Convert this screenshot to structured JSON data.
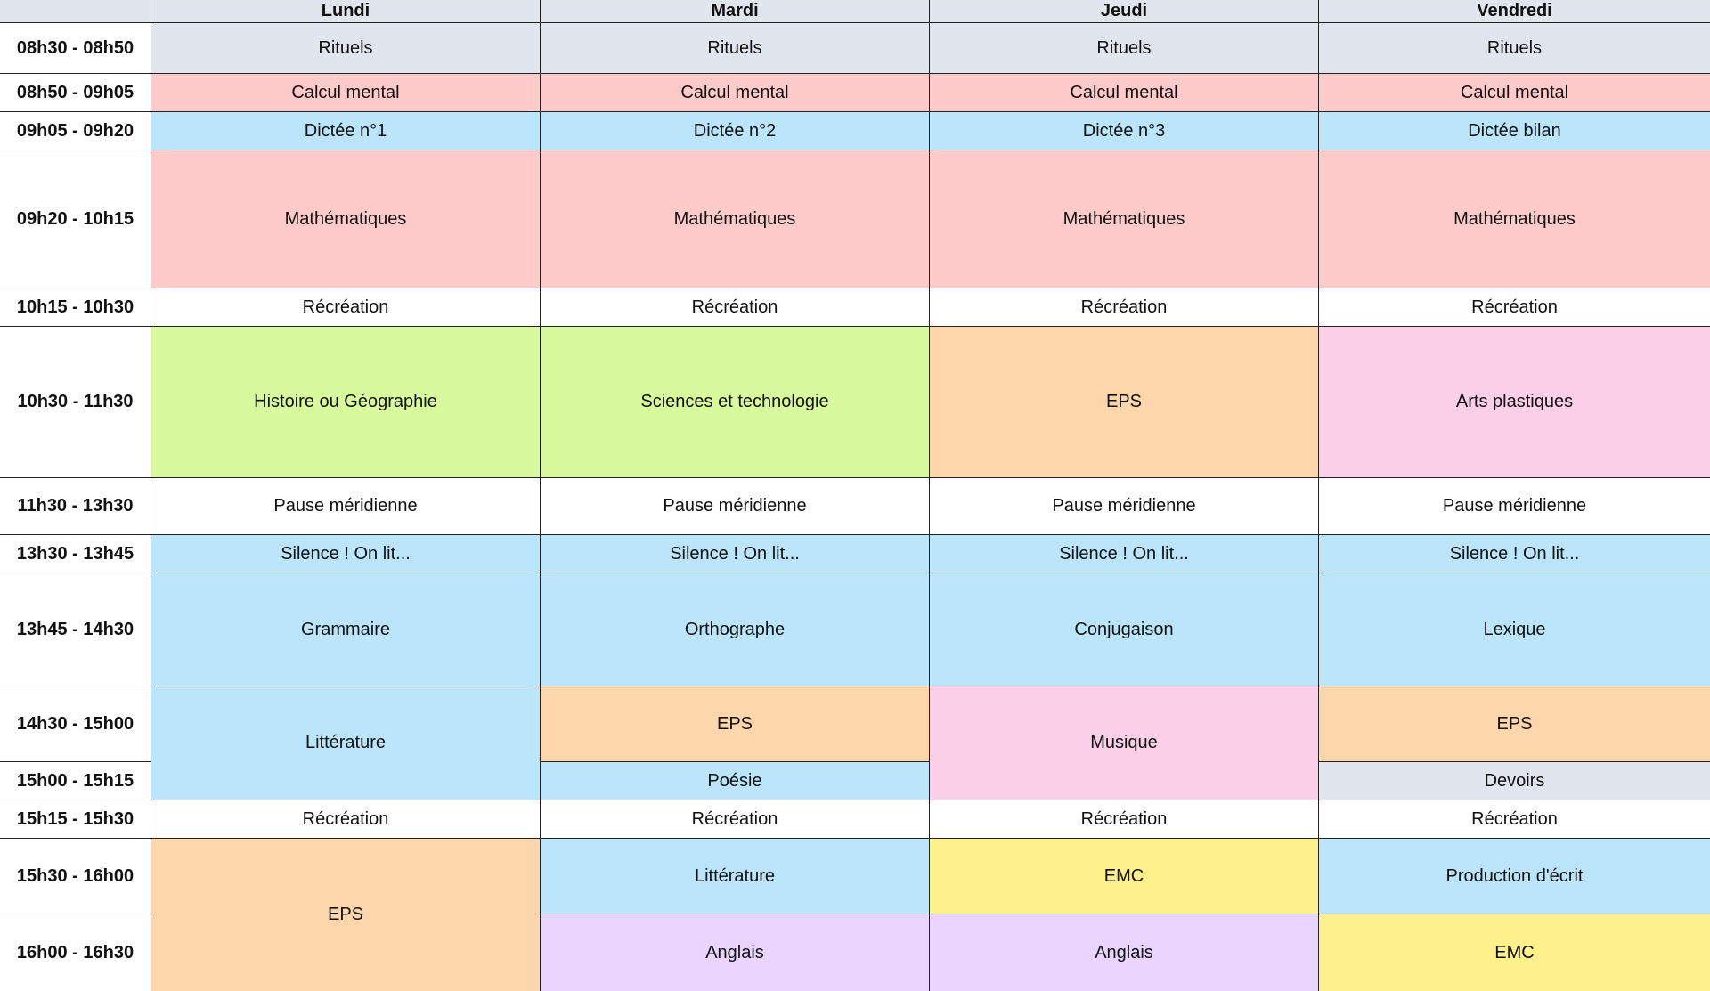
{
  "days": [
    "Lundi",
    "Mardi",
    "Jeudi",
    "Vendredi"
  ],
  "times": [
    "08h30 - 08h50",
    "08h50 - 09h05",
    "09h05 - 09h20",
    "09h20 - 10h15",
    "10h15 - 10h30",
    "10h30 - 11h30",
    "11h30 - 13h30",
    "13h30 - 13h45",
    "13h45 - 14h30",
    "14h30 - 15h00",
    "15h00 - 15h15",
    "15h15 - 15h30",
    "15h30 - 16h00",
    "16h00 - 16h30"
  ],
  "slots": {
    "rituels": "Rituels",
    "calcul": "Calcul mental",
    "dictee1": "Dictée n°1",
    "dictee2": "Dictée n°2",
    "dictee3": "Dictée n°3",
    "dictee_bilan": "Dictée bilan",
    "maths": "Mathématiques",
    "recreation": "Récréation",
    "histoire_geo": "Histoire ou Géographie",
    "sciences": "Sciences et technologie",
    "eps": "EPS",
    "arts": "Arts plastiques",
    "pause": "Pause méridienne",
    "silence": "Silence ! On lit...",
    "grammaire": "Grammaire",
    "orthographe": "Orthographe",
    "conjugaison": "Conjugaison",
    "lexique": "Lexique",
    "litterature": "Littérature",
    "musique": "Musique",
    "poesie": "Poésie",
    "devoirs": "Devoirs",
    "emc": "EMC",
    "production": "Production d'écrit",
    "anglais": "Anglais"
  },
  "colors": {
    "gray": "#e1e6ee",
    "red": "#fecaca",
    "blue": "#bae5fb",
    "white": "#ffffff",
    "green": "#d9f99d",
    "orange": "#fdd7ab",
    "pink": "#fbcfe8",
    "yellow": "#fef08a",
    "purple": "#e9d5ff"
  }
}
